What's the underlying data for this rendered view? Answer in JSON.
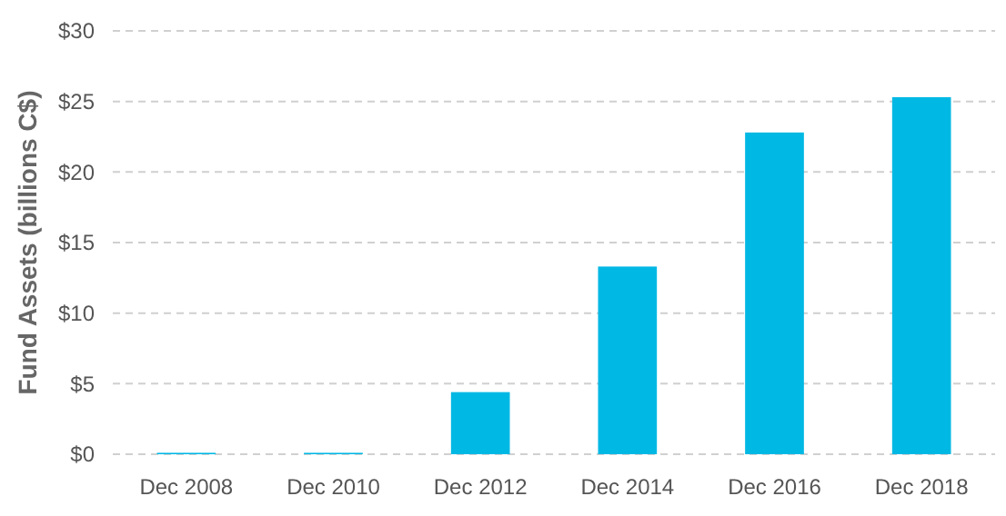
{
  "chart_data": {
    "type": "bar",
    "ylabel": "Fund Assets (billions C$)",
    "categories": [
      "Dec 2008",
      "Dec 2010",
      "Dec 2012",
      "Dec 2014",
      "Dec 2016",
      "Dec 2018"
    ],
    "values": [
      0.1,
      0.1,
      4.4,
      13.3,
      22.8,
      25.3
    ],
    "color": "#00b8e4",
    "ylim": [
      0,
      30
    ],
    "yticks": [
      {
        "value": 0,
        "label": "$0"
      },
      {
        "value": 5,
        "label": "$5"
      },
      {
        "value": 10,
        "label": "$10"
      },
      {
        "value": 15,
        "label": "$15"
      },
      {
        "value": 20,
        "label": "$20"
      },
      {
        "value": 25,
        "label": "$25"
      },
      {
        "value": 30,
        "label": "$30"
      }
    ],
    "grid": "y"
  }
}
